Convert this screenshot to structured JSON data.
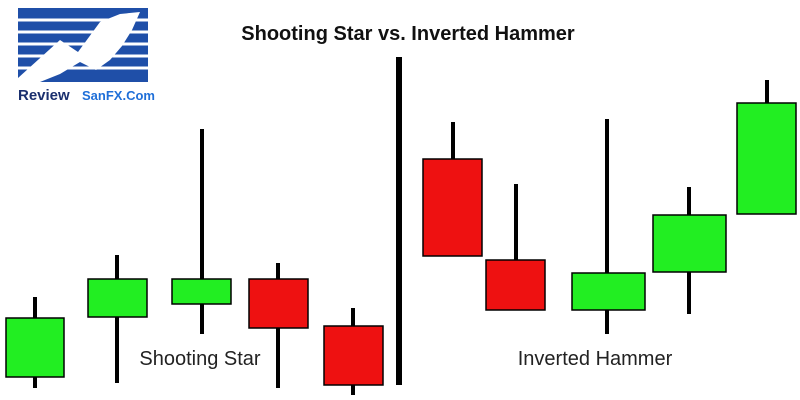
{
  "header": {
    "title": "Shooting Star vs. Inverted Hammer"
  },
  "logo": {
    "word1": "Review",
    "word2": "SanFX.Com"
  },
  "labels": {
    "left": "Shooting Star",
    "right": "Inverted Hammer"
  }
}
